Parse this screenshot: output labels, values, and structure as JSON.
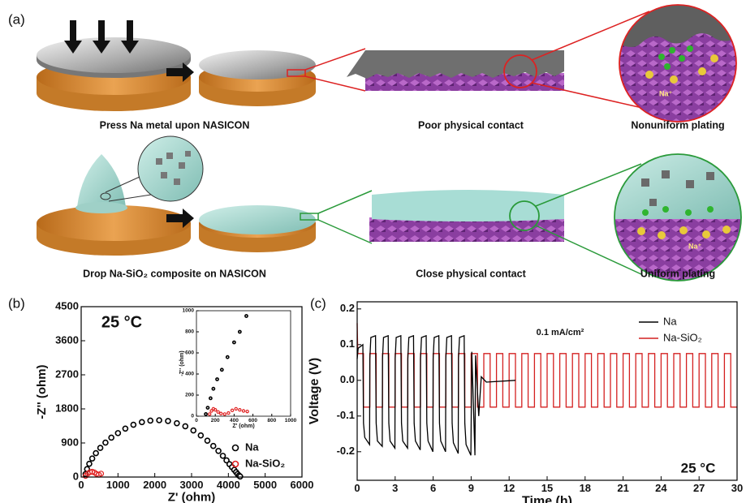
{
  "panel_labels": [
    "(a)",
    "(b)",
    "(c)"
  ],
  "panel_a": {
    "captions": [
      "Press Na metal upon NASICON",
      "Poor physical contact",
      "Nonuniform plating",
      "Drop Na-SiO₂ composite on NASICON",
      "Close physical contact",
      "Uniform plating"
    ],
    "ion_labels": [
      "Na⁺",
      "Na⁺"
    ]
  },
  "chart_data": [
    {
      "type": "scatter",
      "xlabel": "Z' (ohm)",
      "ylabel": "-Z'' (ohm)",
      "annotation": "25 °C",
      "xlim": [
        0,
        6000
      ],
      "xticks": [
        0,
        1000,
        2000,
        3000,
        4000,
        5000,
        6000
      ],
      "ylim": [
        0,
        4500
      ],
      "yticks": [
        0,
        900,
        1800,
        2700,
        3600,
        4500
      ],
      "legend": "lower right",
      "series": [
        {
          "name": "Na",
          "color": "#000000",
          "x": [
            120,
            160,
            220,
            300,
            400,
            520,
            660,
            820,
            1000,
            1200,
            1420,
            1650,
            1880,
            2120,
            2360,
            2600,
            2830,
            3050,
            3250,
            3430,
            3590,
            3730,
            3850,
            3950,
            4030,
            4100,
            4160,
            4210,
            4250,
            4290,
            4320
          ],
          "values": [
            80,
            210,
            350,
            490,
            630,
            770,
            910,
            1040,
            1160,
            1280,
            1380,
            1450,
            1490,
            1500,
            1480,
            1420,
            1340,
            1230,
            1100,
            960,
            820,
            690,
            560,
            440,
            340,
            260,
            190,
            130,
            80,
            40,
            15
          ]
        },
        {
          "name": "Na-SiO₂",
          "color": "#e02020",
          "x": [
            120,
            180,
            240,
            300,
            360,
            420,
            480,
            540
          ],
          "values": [
            30,
            90,
            130,
            140,
            120,
            80,
            60,
            90
          ]
        }
      ]
    },
    {
      "type": "scatter",
      "xlabel": "Z' (ohm)",
      "ylabel": "-Z'' (ohm)",
      "xlim": [
        0,
        1000
      ],
      "xticks": [
        0,
        200,
        400,
        600,
        800,
        1000
      ],
      "ylim": [
        0,
        1000
      ],
      "yticks": [
        0,
        200,
        400,
        600,
        800,
        1000
      ],
      "series": [
        {
          "name": "Na",
          "color": "#000000",
          "x": [
            100,
            120,
            150,
            180,
            220,
            270,
            330,
            400,
            460,
            530
          ],
          "values": [
            20,
            80,
            170,
            260,
            350,
            440,
            560,
            700,
            800,
            950
          ]
        },
        {
          "name": "Na-SiO₂",
          "color": "#e02020",
          "x": [
            140,
            160,
            180,
            200,
            230,
            260,
            300,
            340,
            380,
            420,
            460,
            500,
            540
          ],
          "values": [
            20,
            50,
            70,
            60,
            40,
            25,
            20,
            30,
            55,
            70,
            60,
            50,
            45
          ]
        }
      ]
    },
    {
      "type": "line",
      "xlabel": "Time (h)",
      "ylabel": "Voltage (V)",
      "annotations": [
        "0.1 mA/cm²",
        "25 °C"
      ],
      "xlim": [
        0,
        30
      ],
      "xticks": [
        0,
        3,
        6,
        9,
        12,
        15,
        18,
        21,
        24,
        27,
        30
      ],
      "ylim": [
        -0.28,
        0.22
      ],
      "yticks": [
        -0.2,
        -0.1,
        {
          "value": 0,
          "label": "0.0"
        },
        0.1,
        0.2
      ],
      "legend": "upper right",
      "series": [
        {
          "name": "Na",
          "color": "#000000",
          "x": [
            0,
            0.08,
            0.45,
            0.5,
            0.6,
            0.98,
            1,
            1.08,
            1.45,
            1.5,
            1.6,
            1.98,
            2,
            2.08,
            2.45,
            2.5,
            2.6,
            2.98,
            3,
            3.08,
            3.45,
            3.5,
            3.6,
            3.98,
            4,
            4.08,
            4.45,
            4.5,
            4.6,
            4.98,
            5,
            5.08,
            5.45,
            5.5,
            5.6,
            5.98,
            6,
            6.08,
            6.45,
            6.5,
            6.6,
            6.98,
            7,
            7.08,
            7.45,
            7.5,
            7.6,
            7.98,
            8,
            8.08,
            8.45,
            8.5,
            8.6,
            8.98,
            9.05,
            9.3,
            9.35,
            9.6,
            9.8,
            10.2,
            12.5
          ],
          "values": [
            0.06,
            0.09,
            0.1,
            -0.12,
            -0.16,
            -0.18,
            0.06,
            0.12,
            0.125,
            -0.12,
            -0.17,
            -0.185,
            0.06,
            0.12,
            0.125,
            -0.12,
            -0.17,
            -0.19,
            0.06,
            0.12,
            0.125,
            -0.12,
            -0.17,
            -0.19,
            0.06,
            0.12,
            0.125,
            -0.12,
            -0.17,
            -0.195,
            0.06,
            0.12,
            0.125,
            -0.12,
            -0.17,
            -0.2,
            0.06,
            0.12,
            0.125,
            -0.12,
            -0.17,
            -0.2,
            0.06,
            0.12,
            0.125,
            -0.12,
            -0.175,
            -0.205,
            0.06,
            0.12,
            0.125,
            -0.12,
            -0.18,
            -0.21,
            0.08,
            -0.21,
            0.07,
            -0.1,
            0.01,
            -0.005,
            0
          ]
        },
        {
          "name": "Na-SiO₂",
          "color": "#d42020",
          "x": [
            0,
            0.05,
            0.5,
            0.5,
            1,
            1,
            1.5,
            1.5,
            2,
            2,
            2.5,
            2.5,
            3,
            3,
            3.5,
            3.5,
            4,
            4,
            4.5,
            4.5,
            5,
            5,
            5.5,
            5.5,
            6,
            6,
            6.5,
            6.5,
            7,
            7,
            7.5,
            7.5,
            8,
            8,
            8.5,
            8.5,
            9,
            9,
            9.5,
            9.5,
            10,
            10,
            10.5,
            10.5,
            11,
            11,
            11.5,
            11.5,
            12,
            12,
            12.5,
            12.5,
            13,
            13,
            13.5,
            13.5,
            14,
            14,
            14.5,
            14.5,
            15,
            15,
            15.5,
            15.5,
            16,
            16,
            16.5,
            16.5,
            17,
            17,
            17.5,
            17.5,
            18,
            18,
            18.5,
            18.5,
            19,
            19,
            19.5,
            19.5,
            20,
            20,
            20.5,
            20.5,
            21,
            21,
            21.5,
            21.5,
            22,
            22,
            22.5,
            22.5,
            23,
            23,
            23.5,
            23.5,
            24,
            24,
            24.5,
            24.5,
            25,
            25,
            25.5,
            25.5,
            26,
            26,
            26.5,
            26.5,
            27,
            27,
            27.5,
            27.5,
            28,
            28,
            28.5,
            28.5,
            29,
            29,
            29.5,
            29.5,
            30
          ],
          "values": [
            0.16,
            0.075,
            0.075,
            -0.075,
            -0.075,
            0.075,
            0.075,
            -0.075,
            -0.075,
            0.075,
            0.075,
            -0.075,
            -0.075,
            0.075,
            0.075,
            -0.075,
            -0.075,
            0.075,
            0.075,
            -0.075,
            -0.075,
            0.075,
            0.075,
            -0.075,
            -0.075,
            0.075,
            0.075,
            -0.075,
            -0.075,
            0.075,
            0.075,
            -0.075,
            -0.075,
            0.075,
            0.075,
            -0.075,
            -0.075,
            0.075,
            0.075,
            -0.075,
            -0.075,
            0.075,
            0.075,
            -0.075,
            -0.075,
            0.075,
            0.075,
            -0.075,
            -0.075,
            0.075,
            0.075,
            -0.075,
            -0.075,
            0.075,
            0.075,
            -0.075,
            -0.075,
            0.075,
            0.075,
            -0.075,
            -0.075,
            0.075,
            0.075,
            -0.075,
            -0.075,
            0.075,
            0.075,
            -0.075,
            -0.075,
            0.075,
            0.075,
            -0.075,
            -0.075,
            0.075,
            0.075,
            -0.075,
            -0.075,
            0.075,
            0.075,
            -0.075,
            -0.075,
            0.075,
            0.075,
            -0.075,
            -0.075,
            0.075,
            0.075,
            -0.075,
            -0.075,
            0.075,
            0.075,
            -0.075,
            -0.075,
            0.075,
            0.075,
            -0.075,
            -0.075,
            0.075,
            0.075,
            -0.075,
            -0.075,
            0.075,
            0.075,
            -0.075,
            -0.075,
            0.075,
            0.075,
            -0.075,
            -0.075,
            0.075,
            0.075,
            -0.075,
            -0.075,
            0.075,
            0.075,
            -0.075,
            -0.075,
            0.075,
            0.075,
            -0.075,
            -0.075
          ]
        }
      ]
    }
  ]
}
